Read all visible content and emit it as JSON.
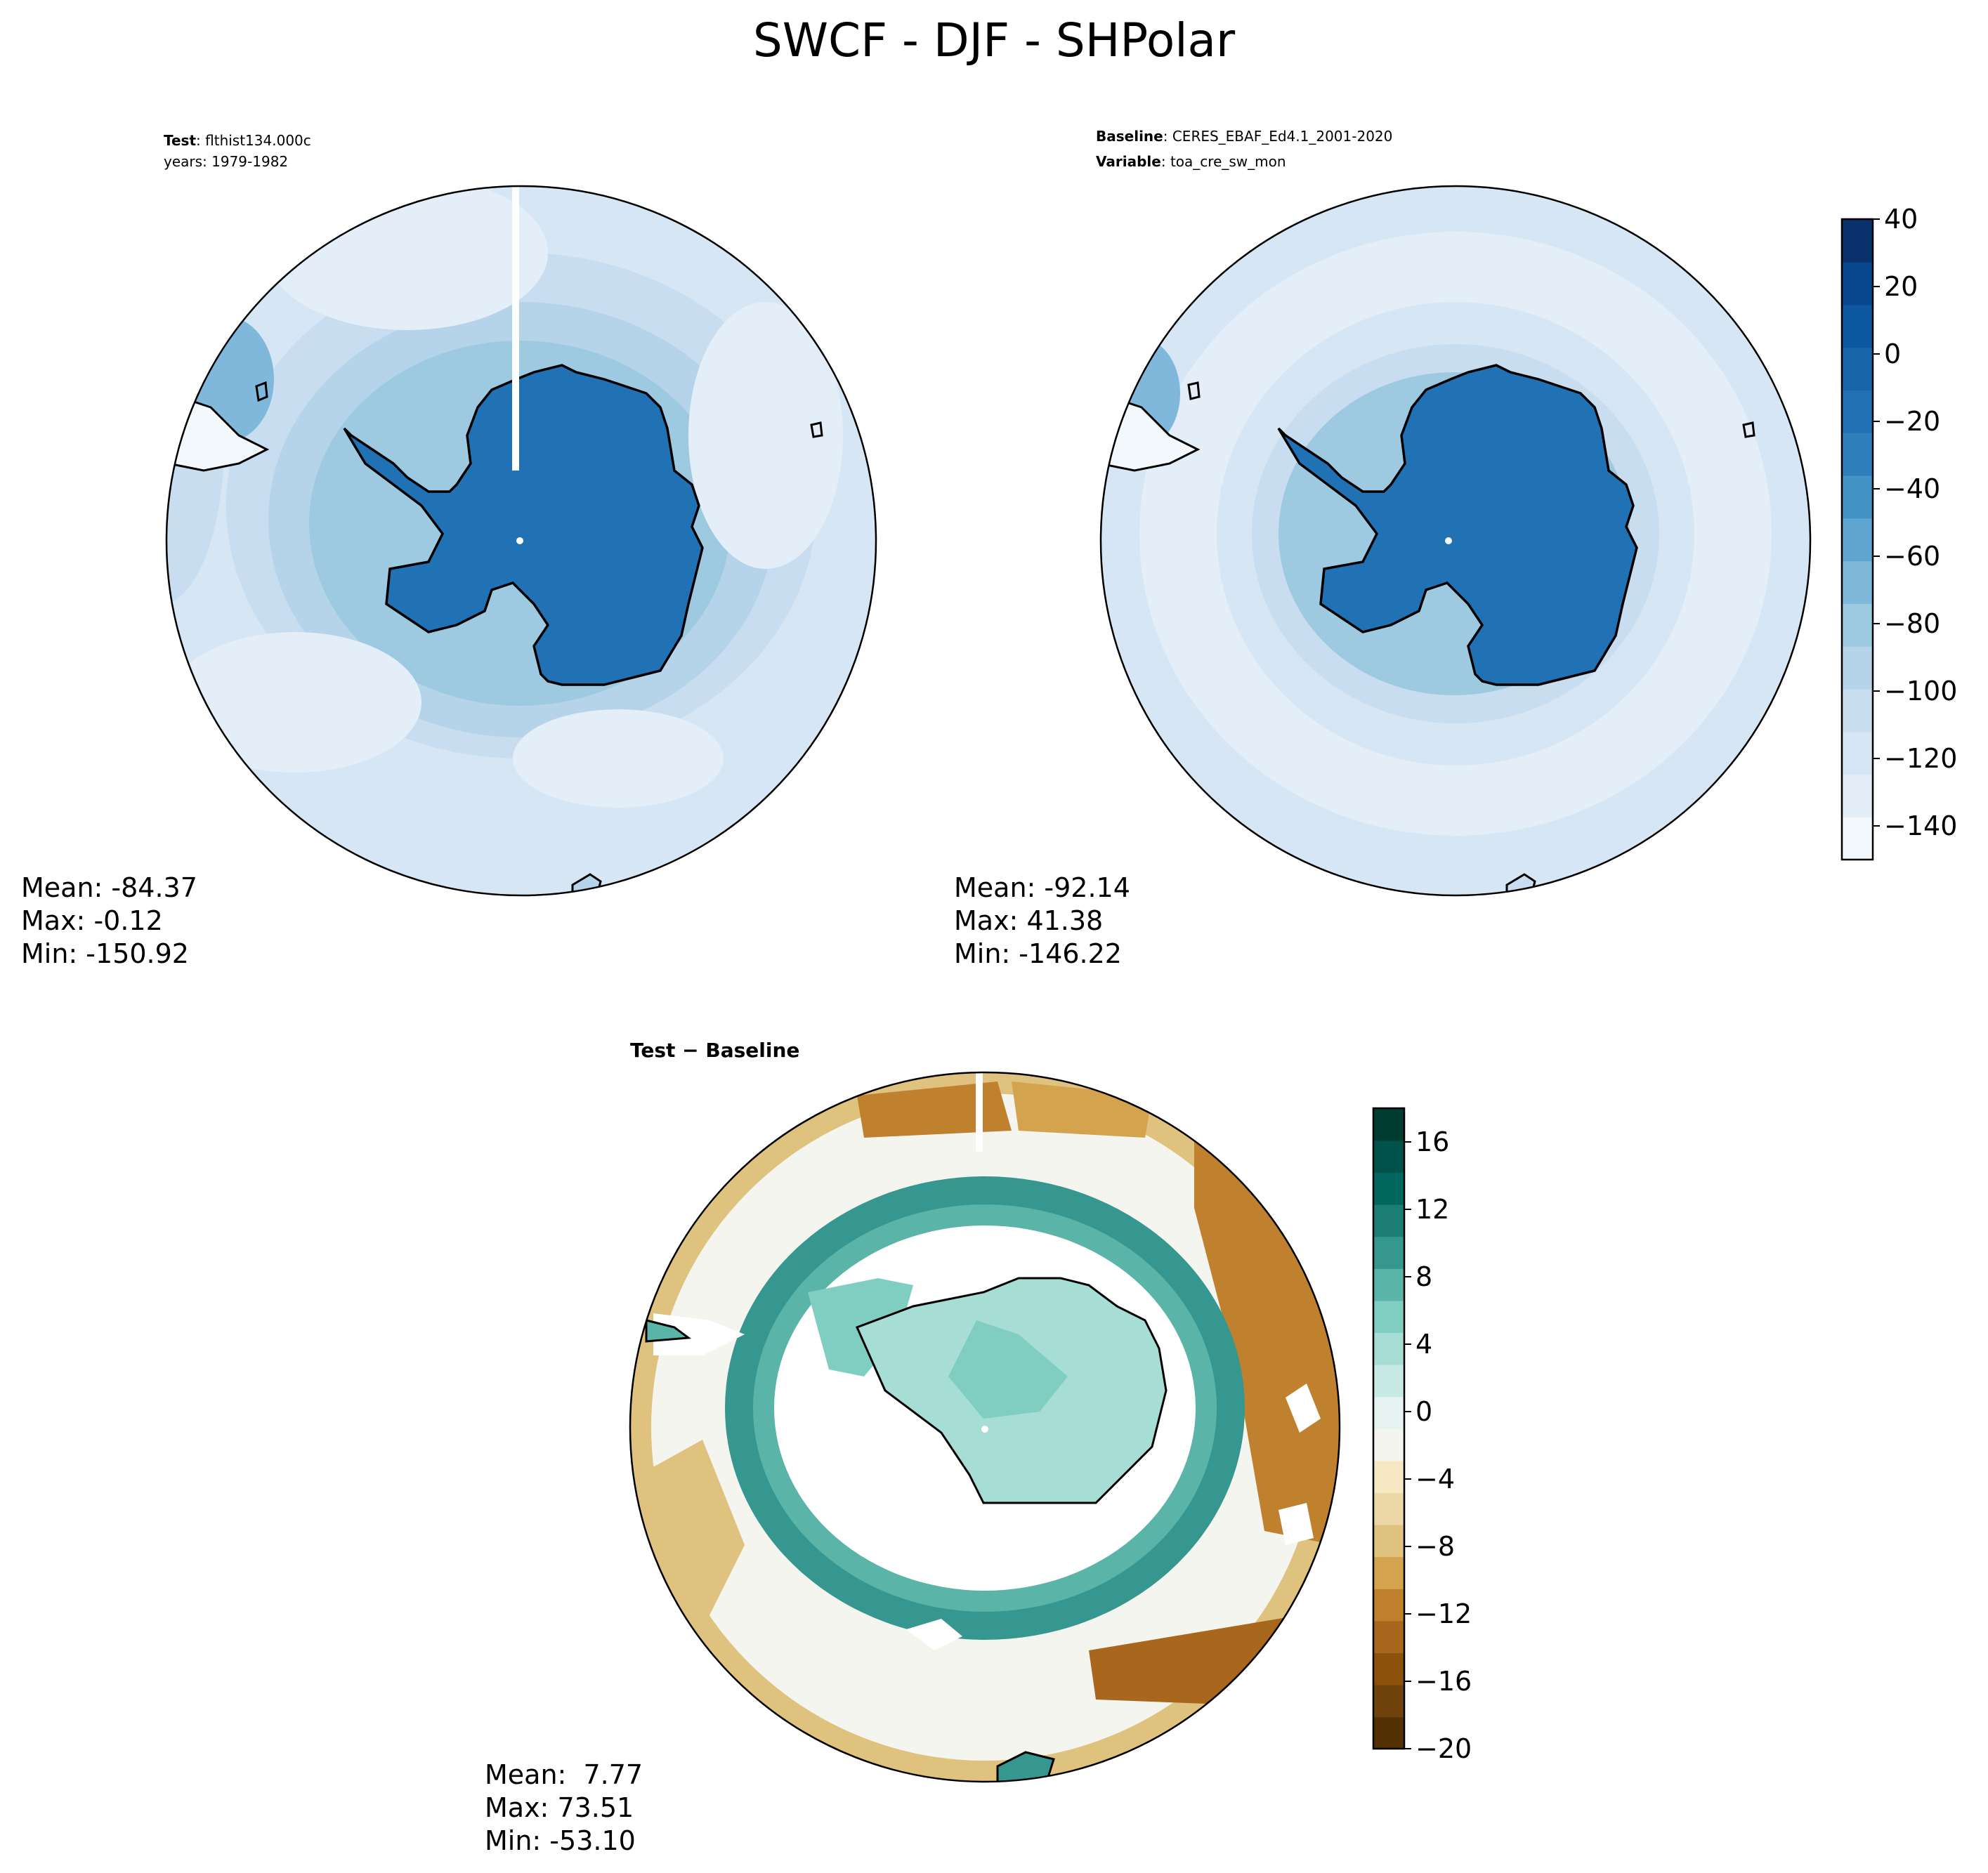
{
  "title": "SWCF - DJF - SHPolar",
  "colors": {
    "test_cmap": [
      "#f3f8fd",
      "#e4eef9",
      "#d6e6f4",
      "#c8ddf0",
      "#b5d4e9",
      "#9ecae1",
      "#7fb8da",
      "#5fa5d1",
      "#4292c6",
      "#2f7ebc",
      "#2171b5",
      "#1764ab",
      "#0d57a1",
      "#08468c",
      "#08306b"
    ],
    "diff_cmap": [
      "#543005",
      "#6f420b",
      "#8c510a",
      "#a8671d",
      "#bf812d",
      "#d3a34e",
      "#dfc27d",
      "#ebd8a6",
      "#f6e8c3",
      "#f5f5f0",
      "#e6f3f0",
      "#c7eae5",
      "#a6ddd4",
      "#80cdc1",
      "#5ab4a8",
      "#35978f",
      "#1b7d74",
      "#01665e",
      "#00524a",
      "#003c30"
    ],
    "coastline": "#000000",
    "land_fill": "#1f6cb6"
  },
  "chart_data": [
    {
      "type": "heatmap",
      "projection": "south-polar-stereographic",
      "title_bold": "Test",
      "title_value": "flthist134.000c",
      "subtitle": "years: 1979-1982",
      "stats": {
        "mean": "Mean: -84.37",
        "max": "Max: -0.12",
        "min": "Min: -150.92"
      },
      "field": {
        "antarctica_value": -5,
        "ring_values": [
          -105,
          -110,
          -115,
          -120
        ],
        "min": -150.92,
        "max": -0.12
      }
    },
    {
      "type": "heatmap",
      "projection": "south-polar-stereographic",
      "title_bold": "Baseline",
      "title_value": "CERES_EBAF_Ed4.1_2001-2020",
      "subtitle_bold": "Variable",
      "subtitle_value": "toa_cre_sw_mon",
      "stats": {
        "mean": "Mean: -92.14",
        "max": "Max: 41.38",
        "min": "Min: -146.22"
      },
      "field": {
        "antarctica_value": -5,
        "ring_values": [
          -100,
          -110,
          -120,
          -115
        ],
        "min": -146.22,
        "max": 41.38
      },
      "colorbar": {
        "ticks": [
          "40",
          "20",
          "0",
          "−20",
          "−40",
          "−60",
          "−80",
          "−100",
          "−120",
          "−140"
        ],
        "tick_values": [
          40,
          20,
          0,
          -20,
          -40,
          -60,
          -80,
          -100,
          -120,
          -140
        ],
        "vmin": -150,
        "vmax": 40
      }
    },
    {
      "type": "heatmap",
      "projection": "south-polar-stereographic",
      "title": "Test − Baseline",
      "stats": {
        "mean": "Mean:  7.77",
        "max": "Max: 73.51",
        "min": "Min: -53.10"
      },
      "field": {
        "min": -53.1,
        "max": 73.51
      },
      "colorbar": {
        "ticks": [
          "16",
          "12",
          "8",
          "4",
          "0",
          "−4",
          "−8",
          "−12",
          "−16",
          "−20"
        ],
        "tick_values": [
          16,
          12,
          8,
          4,
          0,
          -4,
          -8,
          -12,
          -16,
          -20
        ],
        "vmin": -20,
        "vmax": 18
      }
    }
  ]
}
